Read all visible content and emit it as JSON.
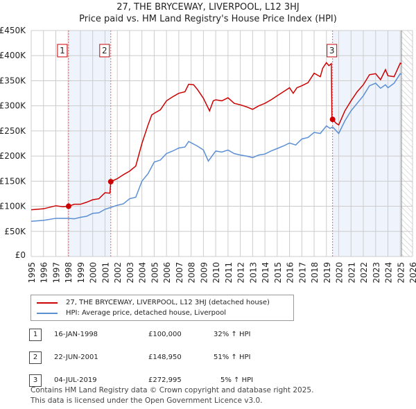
{
  "chart_data": {
    "type": "line",
    "title": "27, THE BRYCEWAY, LIVERPOOL, L12 3HJ",
    "subtitle": "Price paid vs. HM Land Registry's House Price Index (HPI)",
    "xlim": [
      1995,
      2026
    ],
    "ylim": [
      0,
      450000
    ],
    "x_ticks": [
      "1995",
      "1996",
      "1997",
      "1998",
      "1999",
      "2000",
      "2001",
      "2002",
      "2003",
      "2004",
      "2005",
      "2006",
      "2007",
      "2008",
      "2009",
      "2010",
      "2011",
      "2012",
      "2013",
      "2014",
      "2015",
      "2016",
      "2017",
      "2018",
      "2019",
      "2020",
      "2021",
      "2022",
      "2023",
      "2024",
      "2025",
      "2026"
    ],
    "y_ticks": [
      {
        "v": 0,
        "label": "£0"
      },
      {
        "v": 50000,
        "label": "£50K"
      },
      {
        "v": 100000,
        "label": "£100K"
      },
      {
        "v": 150000,
        "label": "£150K"
      },
      {
        "v": 200000,
        "label": "£200K"
      },
      {
        "v": 250000,
        "label": "£250K"
      },
      {
        "v": 300000,
        "label": "£300K"
      },
      {
        "v": 350000,
        "label": "£350K"
      },
      {
        "v": 400000,
        "label": "£400K"
      },
      {
        "v": 450000,
        "label": "£450K"
      }
    ],
    "grid": true,
    "shaded_ranges": [
      [
        1998.04,
        2001.47
      ],
      [
        2019.5,
        2025.05
      ]
    ],
    "forecast_hatch_from": 2025.1,
    "series": [
      {
        "name": "27, THE BRYCEWAY, LIVERPOOL, L12 3HJ (detached house)",
        "color": "#cc0000",
        "points": [
          [
            1995,
            93
          ],
          [
            1996,
            95
          ],
          [
            1997,
            101
          ],
          [
            1997.6,
            99
          ],
          [
            1998.04,
            100
          ],
          [
            1998.5,
            104
          ],
          [
            1999,
            104
          ],
          [
            1999.5,
            108
          ],
          [
            2000,
            113
          ],
          [
            2000.5,
            115
          ],
          [
            2001,
            127
          ],
          [
            2001.4,
            126
          ],
          [
            2001.47,
            149
          ],
          [
            2002,
            155
          ],
          [
            2002.5,
            163
          ],
          [
            2003,
            170
          ],
          [
            2003.5,
            180
          ],
          [
            2004,
            225
          ],
          [
            2004.5,
            262
          ],
          [
            2004.8,
            282
          ],
          [
            2005,
            285
          ],
          [
            2005.5,
            292
          ],
          [
            2006,
            310
          ],
          [
            2006.5,
            318
          ],
          [
            2007,
            325
          ],
          [
            2007.5,
            328
          ],
          [
            2007.8,
            343
          ],
          [
            2008.2,
            342
          ],
          [
            2008.5,
            333
          ],
          [
            2009,
            315
          ],
          [
            2009.5,
            290
          ],
          [
            2009.8,
            310
          ],
          [
            2010,
            312
          ],
          [
            2010.5,
            310
          ],
          [
            2011,
            316
          ],
          [
            2011.5,
            305
          ],
          [
            2012,
            302
          ],
          [
            2012.5,
            298
          ],
          [
            2013,
            293
          ],
          [
            2013.5,
            300
          ],
          [
            2014,
            305
          ],
          [
            2014.5,
            312
          ],
          [
            2015,
            320
          ],
          [
            2015.5,
            328
          ],
          [
            2016,
            336
          ],
          [
            2016.3,
            325
          ],
          [
            2016.6,
            336
          ],
          [
            2017,
            340
          ],
          [
            2017.5,
            346
          ],
          [
            2018,
            365
          ],
          [
            2018.5,
            358
          ],
          [
            2018.7,
            375
          ],
          [
            2019,
            386
          ],
          [
            2019.2,
            380
          ],
          [
            2019.4,
            384
          ],
          [
            2019.45,
            270
          ],
          [
            2019.5,
            273
          ],
          [
            2019.8,
            265
          ],
          [
            2020,
            262
          ],
          [
            2020.5,
            290
          ],
          [
            2021,
            310
          ],
          [
            2021.5,
            328
          ],
          [
            2022,
            342
          ],
          [
            2022.5,
            362
          ],
          [
            2023,
            364
          ],
          [
            2023.4,
            352
          ],
          [
            2023.8,
            372
          ],
          [
            2024,
            360
          ],
          [
            2024.5,
            358
          ],
          [
            2025,
            385
          ],
          [
            2025.1,
            384
          ]
        ]
      },
      {
        "name": "HPI: Average price, detached house, Liverpool",
        "color": "#5b8fd4",
        "points": [
          [
            1995,
            70
          ],
          [
            1996,
            72
          ],
          [
            1997,
            76
          ],
          [
            1998,
            76
          ],
          [
            1998.5,
            75
          ],
          [
            1999,
            78
          ],
          [
            1999.5,
            80
          ],
          [
            2000,
            86
          ],
          [
            2000.5,
            87
          ],
          [
            2001,
            94
          ],
          [
            2001.5,
            98
          ],
          [
            2002,
            102
          ],
          [
            2002.5,
            105
          ],
          [
            2003,
            115
          ],
          [
            2003.5,
            118
          ],
          [
            2004,
            150
          ],
          [
            2004.5,
            165
          ],
          [
            2005,
            188
          ],
          [
            2005.5,
            192
          ],
          [
            2006,
            205
          ],
          [
            2006.5,
            210
          ],
          [
            2007,
            216
          ],
          [
            2007.5,
            218
          ],
          [
            2007.8,
            229
          ],
          [
            2008.5,
            220
          ],
          [
            2009,
            212
          ],
          [
            2009.4,
            190
          ],
          [
            2010,
            210
          ],
          [
            2010.5,
            208
          ],
          [
            2011,
            212
          ],
          [
            2011.5,
            205
          ],
          [
            2012,
            202
          ],
          [
            2012.5,
            200
          ],
          [
            2013,
            197
          ],
          [
            2013.5,
            202
          ],
          [
            2014,
            204
          ],
          [
            2014.5,
            210
          ],
          [
            2015,
            215
          ],
          [
            2015.5,
            220
          ],
          [
            2016,
            226
          ],
          [
            2016.5,
            222
          ],
          [
            2017,
            234
          ],
          [
            2017.5,
            237
          ],
          [
            2018,
            247
          ],
          [
            2018.5,
            245
          ],
          [
            2019,
            260
          ],
          [
            2019.3,
            255
          ],
          [
            2019.5,
            258
          ],
          [
            2020,
            245
          ],
          [
            2020.5,
            270
          ],
          [
            2021,
            290
          ],
          [
            2021.5,
            305
          ],
          [
            2022,
            320
          ],
          [
            2022.5,
            340
          ],
          [
            2023,
            345
          ],
          [
            2023.4,
            335
          ],
          [
            2023.8,
            342
          ],
          [
            2024,
            336
          ],
          [
            2024.5,
            345
          ],
          [
            2025,
            364
          ],
          [
            2025.1,
            363
          ]
        ]
      }
    ],
    "sales": [
      {
        "id": "1",
        "x": 1998.04,
        "y": 100
      },
      {
        "id": "2",
        "x": 2001.47,
        "y": 148.95
      },
      {
        "id": "3",
        "x": 2019.5,
        "y": 272.995
      }
    ]
  },
  "legend": [
    "27, THE BRYCEWAY, LIVERPOOL, L12 3HJ (detached house)",
    "HPI: Average price, detached house, Liverpool"
  ],
  "table": [
    {
      "num": "1",
      "date": "16-JAN-1998",
      "price": "£100,000",
      "hpi": "32% ↑ HPI"
    },
    {
      "num": "2",
      "date": "22-JUN-2001",
      "price": "£148,950",
      "hpi": "51% ↑ HPI"
    },
    {
      "num": "3",
      "date": "04-JUL-2019",
      "price": "£272,995",
      "hpi": "5% ↑ HPI"
    }
  ],
  "footer": [
    "Contains HM Land Registry data © Crown copyright and database right 2025.",
    "This data is licensed under the Open Government Licence v3.0."
  ]
}
